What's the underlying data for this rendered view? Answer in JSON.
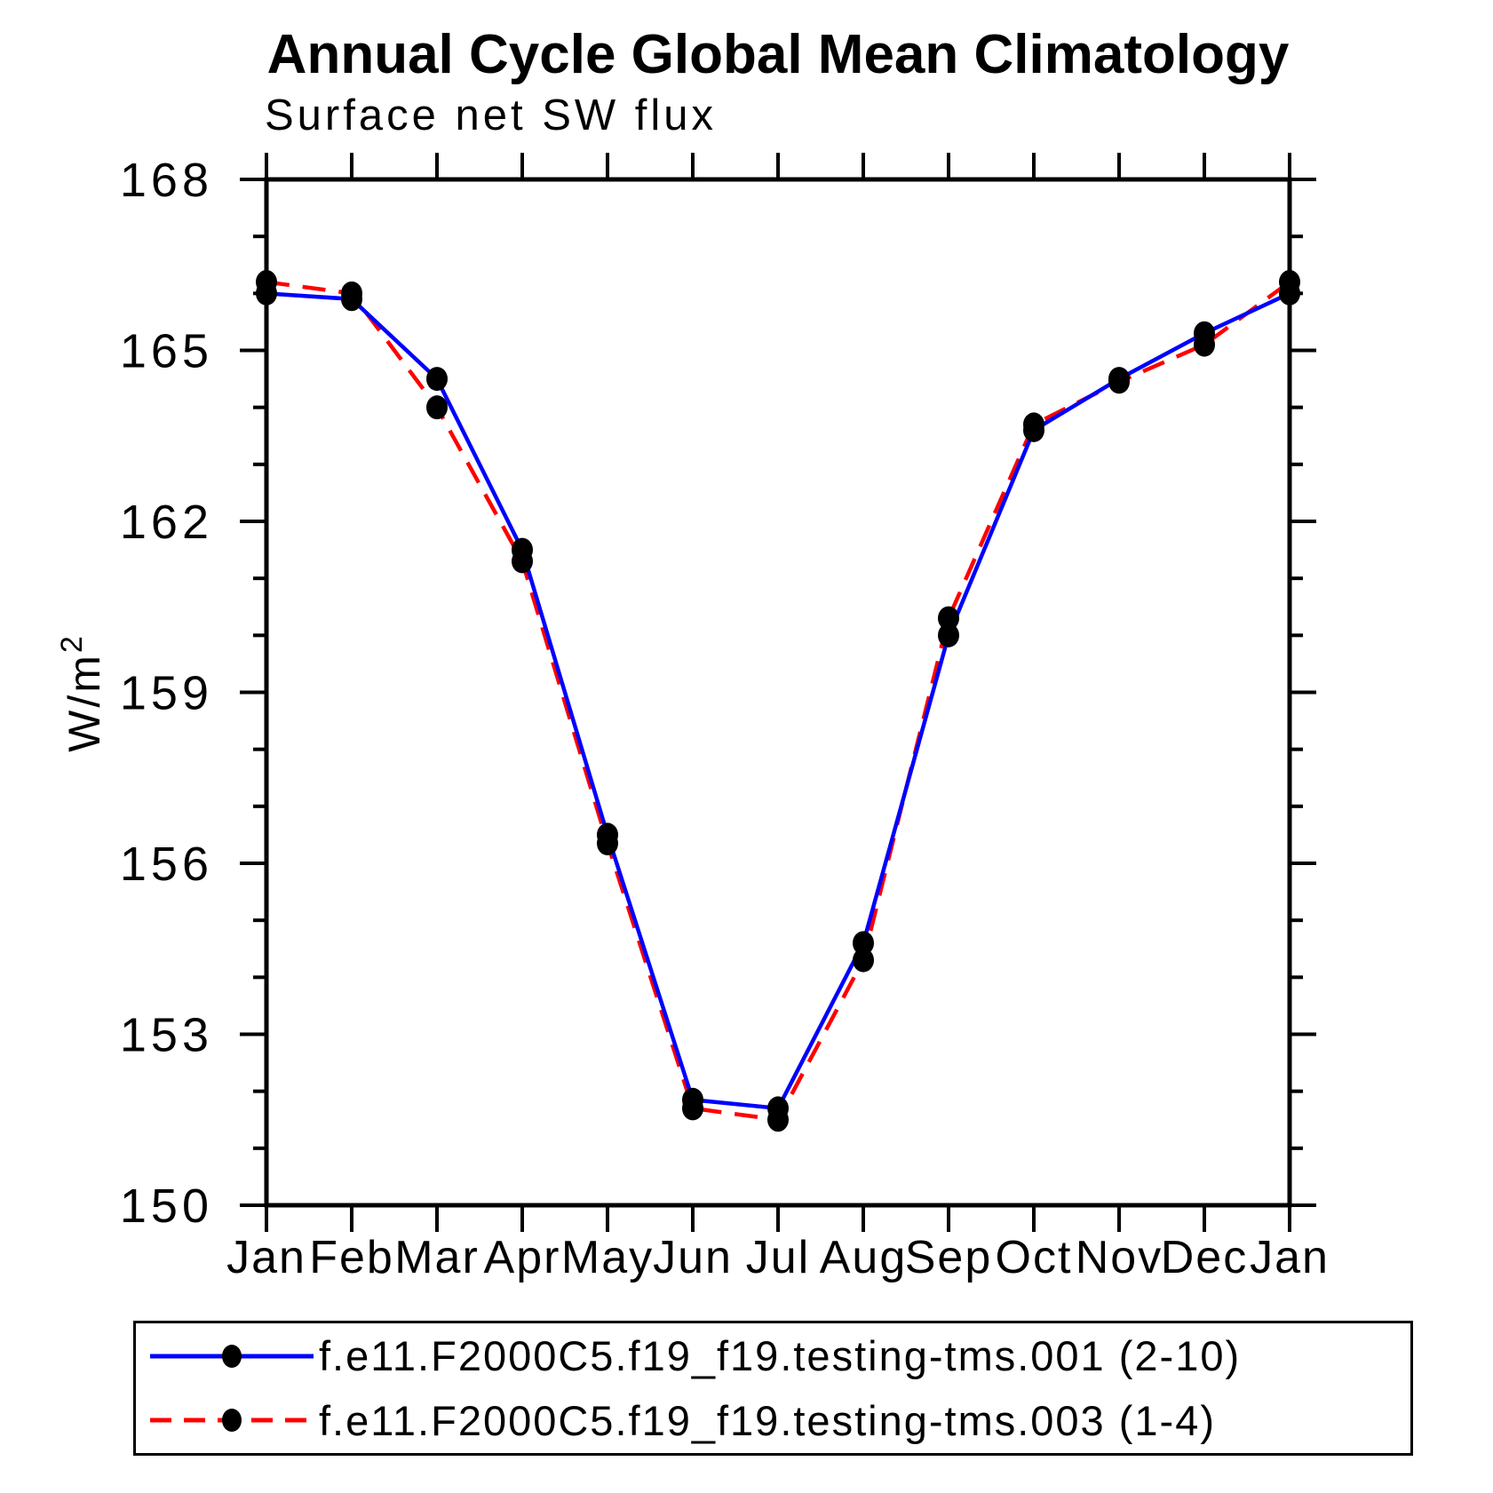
{
  "title": "Annual Cycle Global Mean Climatology",
  "subtitle": "Surface net SW flux",
  "chart_data": {
    "type": "line",
    "title": "Annual Cycle Global Mean Climatology",
    "subtitle": "Surface net SW flux",
    "ylabel": "W/m²",
    "ylabel_base": "W/m",
    "ylabel_exp": "2",
    "xlabel": "",
    "x_categories": [
      "Jan",
      "Feb",
      "Mar",
      "Apr",
      "May",
      "Jun",
      "Jul",
      "Aug",
      "Sep",
      "Oct",
      "Nov",
      "Dec",
      "Jan"
    ],
    "ylim": [
      150,
      168
    ],
    "y_major_ticks": [
      150,
      153,
      156,
      159,
      162,
      165,
      168
    ],
    "y_minor_step": 1,
    "grid": "off",
    "legend_position": "bottom",
    "marker_color": "#000000",
    "frame_color": "#000000",
    "series": [
      {
        "name": "f.e11.F2000C5.f19_f19.testing-tms.001 (2-10)",
        "color": "#0000ff",
        "style": "solid",
        "marker": "filled-circle",
        "values": [
          166.0,
          165.9,
          164.5,
          161.5,
          156.5,
          151.85,
          151.7,
          154.6,
          160.0,
          163.6,
          164.5,
          165.3,
          166.0
        ]
      },
      {
        "name": "f.e11.F2000C5.f19_f19.testing-tms.003 (1-4)",
        "color": "#ff0000",
        "style": "dashed",
        "marker": "filled-circle",
        "values": [
          166.2,
          166.0,
          164.0,
          161.3,
          156.35,
          151.7,
          151.5,
          154.3,
          160.3,
          163.7,
          164.45,
          165.1,
          166.2
        ]
      }
    ]
  }
}
